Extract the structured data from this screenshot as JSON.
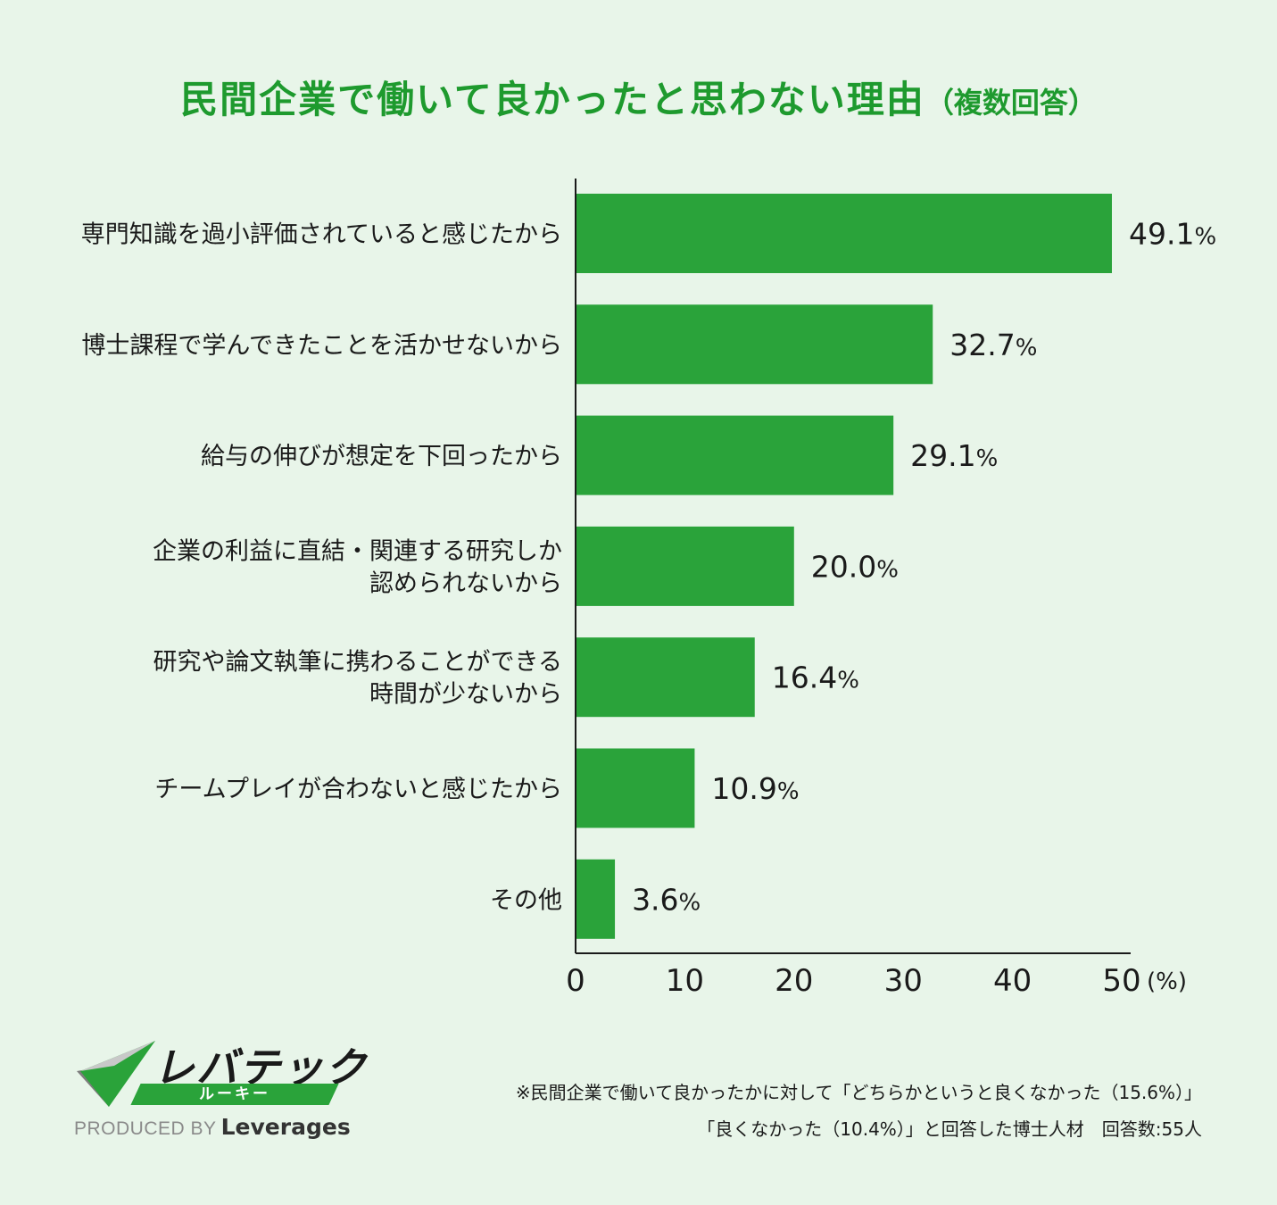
{
  "title": {
    "main": "民間企業で働いて良かったと思わない理由",
    "sub": "（複数回答）"
  },
  "chart_data": {
    "type": "bar",
    "orientation": "horizontal",
    "categories": [
      [
        "専門知識を過小評価されていると感じたから"
      ],
      [
        "博士課程で学んできたことを活かせないから"
      ],
      [
        "給与の伸びが想定を下回ったから"
      ],
      [
        "企業の利益に直結・関連する研究しか",
        "認められないから"
      ],
      [
        "研究や論文執筆に携わることができる",
        "時間が少ないから"
      ],
      [
        "チームプレイが合わないと感じたから"
      ],
      [
        "その他"
      ]
    ],
    "values": [
      49.1,
      32.7,
      29.1,
      20.0,
      16.4,
      10.9,
      3.6
    ],
    "value_labels": [
      "49.1",
      "32.7",
      "29.1",
      "20.0",
      "16.4",
      "10.9",
      "3.6"
    ],
    "value_unit": "%",
    "xlim": [
      0,
      50
    ],
    "xticks": [
      "0",
      "10",
      "20",
      "30",
      "40",
      "50"
    ],
    "xunit": "(%)",
    "bar_color": "#2aa33a",
    "grid": false
  },
  "logo": {
    "name": "レバテック",
    "band": "ルーキー",
    "produced_by": "PRODUCED BY",
    "company": "Leverages"
  },
  "notes": [
    "※民間企業で働いて良かったかに対して「どちらかというと良くなかった（15.6%）」",
    "「良くなかった（10.4%）」と回答した博士人材　回答数:55人"
  ],
  "colors": {
    "background": "#e8f5e9",
    "title": "#1e9a2e",
    "bar": "#2aa33a"
  }
}
